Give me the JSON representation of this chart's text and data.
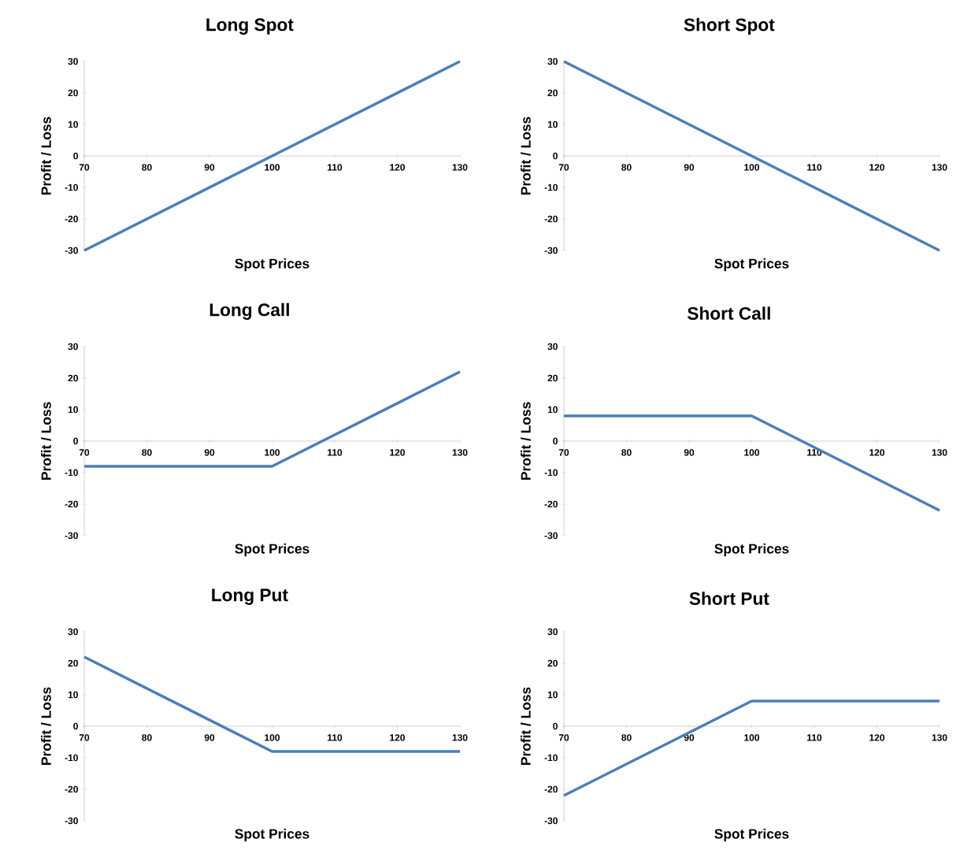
{
  "chart_data": [
    {
      "type": "line",
      "title": "Long Spot",
      "xlabel": "Spot Prices",
      "ylabel": "Profit / Loss",
      "x": [
        70,
        100,
        130
      ],
      "values": [
        -30,
        0,
        30
      ],
      "color": "#4a7ebb",
      "xlim": [
        70,
        130
      ],
      "ylim": [
        -30,
        30
      ],
      "xticks": [
        70,
        80,
        90,
        100,
        110,
        120,
        130
      ],
      "yticks": [
        -30,
        -20,
        -10,
        0,
        10,
        20,
        30
      ],
      "marker": "none"
    },
    {
      "type": "line",
      "title": "Short Spot",
      "xlabel": "Spot Prices",
      "ylabel": "Profit / Loss",
      "x": [
        70,
        100,
        130
      ],
      "values": [
        30,
        0,
        -30
      ],
      "color": "#4a7ebb",
      "xlim": [
        70,
        130
      ],
      "ylim": [
        -30,
        30
      ],
      "xticks": [
        70,
        80,
        90,
        100,
        110,
        120,
        130
      ],
      "yticks": [
        -30,
        -20,
        -10,
        0,
        10,
        20,
        30
      ],
      "marker": "none"
    },
    {
      "type": "line",
      "title": "Long Call",
      "xlabel": "Spot Prices",
      "ylabel": "Profit / Loss",
      "x": [
        70,
        100,
        130
      ],
      "values": [
        -8,
        -8,
        22
      ],
      "color": "#4a7ebb",
      "xlim": [
        70,
        130
      ],
      "ylim": [
        -30,
        30
      ],
      "xticks": [
        70,
        80,
        90,
        100,
        110,
        120,
        130
      ],
      "yticks": [
        -30,
        -20,
        -10,
        0,
        10,
        20,
        30
      ],
      "marker": "none"
    },
    {
      "type": "line",
      "title": "Short Call",
      "xlabel": "Spot Prices",
      "ylabel": "Profit / Loss",
      "x": [
        70,
        100,
        130
      ],
      "values": [
        8,
        8,
        -22
      ],
      "color": "#4a7ebb",
      "xlim": [
        70,
        130
      ],
      "ylim": [
        -30,
        30
      ],
      "xticks": [
        70,
        80,
        90,
        100,
        110,
        120,
        130
      ],
      "yticks": [
        -30,
        -20,
        -10,
        0,
        10,
        20,
        30
      ],
      "marker": "none"
    },
    {
      "type": "line",
      "title": "Long Put",
      "xlabel": "Spot Prices",
      "ylabel": "Profit / Loss",
      "x": [
        70,
        100,
        130
      ],
      "values": [
        22,
        -8,
        -8
      ],
      "color": "#4a7ebb",
      "xlim": [
        70,
        130
      ],
      "ylim": [
        -30,
        30
      ],
      "xticks": [
        70,
        80,
        90,
        100,
        110,
        120,
        130
      ],
      "yticks": [
        -30,
        -20,
        -10,
        0,
        10,
        20,
        30
      ],
      "marker": "none"
    },
    {
      "type": "line",
      "title": "Short Put",
      "xlabel": "Spot Prices",
      "ylabel": "Profit / Loss",
      "x": [
        70,
        100,
        130
      ],
      "values": [
        -22,
        8,
        8
      ],
      "color": "#4a7ebb",
      "xlim": [
        70,
        130
      ],
      "ylim": [
        -30,
        30
      ],
      "xticks": [
        70,
        80,
        90,
        100,
        110,
        120,
        130
      ],
      "yticks": [
        -30,
        -20,
        -10,
        0,
        10,
        20,
        30
      ],
      "marker": "none"
    }
  ]
}
